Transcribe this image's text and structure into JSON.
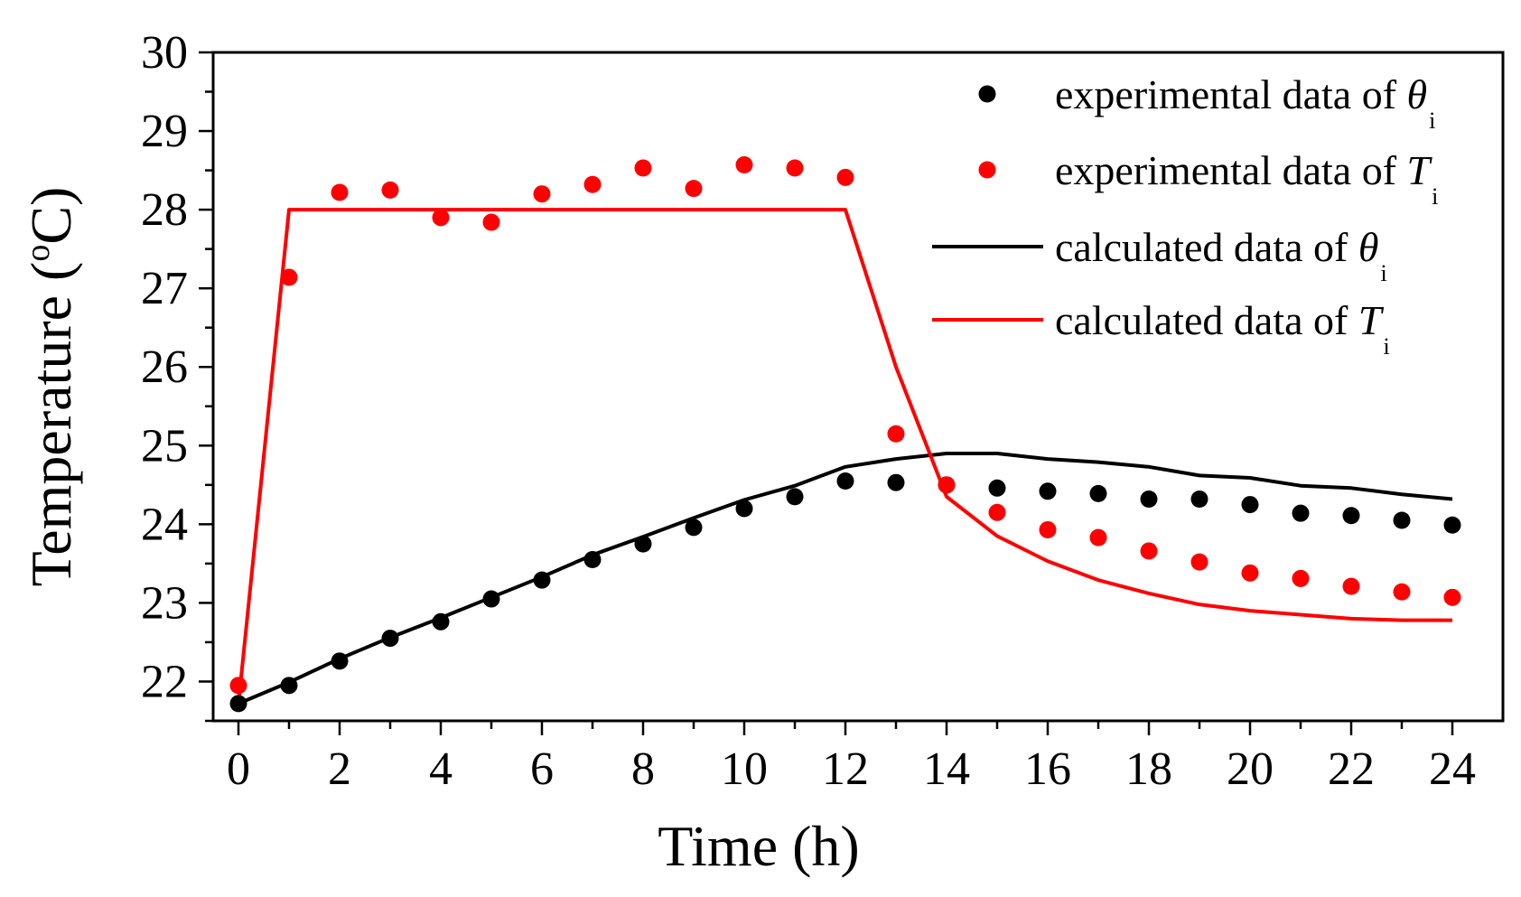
{
  "chart_data": {
    "type": "line",
    "title": "",
    "xlabel": "Time (h)",
    "ylabel": {
      "prefix": "Temperature (",
      "sup": "o",
      "suffix": "C)"
    },
    "xlim": [
      -0.5,
      25
    ],
    "ylim": [
      21.5,
      30
    ],
    "x_ticks": [
      0,
      2,
      4,
      6,
      8,
      10,
      12,
      14,
      16,
      18,
      20,
      22,
      24
    ],
    "y_ticks": [
      22,
      23,
      24,
      25,
      26,
      27,
      28,
      29,
      30
    ],
    "legend_position": "top-right",
    "series": [
      {
        "name": "experimental data of θi",
        "text": "experimental data of ",
        "symbol": "θ",
        "subscript": "i",
        "kind": "scatter",
        "color": "#000000",
        "x": [
          0,
          1,
          2,
          3,
          4,
          5,
          6,
          7,
          8,
          9,
          10,
          11,
          12,
          13,
          14,
          15,
          16,
          17,
          18,
          19,
          20,
          21,
          22,
          23,
          24
        ],
        "y": [
          21.72,
          21.95,
          22.26,
          22.55,
          22.76,
          23.05,
          23.29,
          23.55,
          23.75,
          23.96,
          24.2,
          24.35,
          24.55,
          24.53,
          24.5,
          24.46,
          24.42,
          24.39,
          24.32,
          24.32,
          24.25,
          24.14,
          24.11,
          24.05,
          23.99
        ]
      },
      {
        "name": "experimental data of Ti",
        "text": "experimental data of ",
        "symbol": "T",
        "subscript": "i",
        "kind": "scatter",
        "color": "#ff0000",
        "x": [
          0,
          1,
          2,
          3,
          4,
          5,
          6,
          7,
          8,
          9,
          10,
          11,
          12,
          13,
          14,
          15,
          16,
          17,
          18,
          19,
          20,
          21,
          22,
          23,
          24
        ],
        "y": [
          21.95,
          27.14,
          28.22,
          28.25,
          27.9,
          27.84,
          28.2,
          28.32,
          28.53,
          28.27,
          28.57,
          28.53,
          28.41,
          25.15,
          24.5,
          24.15,
          23.93,
          23.83,
          23.66,
          23.52,
          23.38,
          23.31,
          23.21,
          23.14,
          23.07
        ]
      },
      {
        "name": "calculated data of θi",
        "text": "calculated data of ",
        "symbol": "θ",
        "subscript": "i",
        "kind": "line",
        "color": "#000000",
        "x": [
          0,
          1,
          2,
          3,
          4,
          5,
          6,
          7,
          8,
          9,
          10,
          11,
          12,
          13,
          14,
          15,
          16,
          17,
          18,
          19,
          20,
          21,
          22,
          23,
          24
        ],
        "y": [
          21.72,
          21.99,
          22.29,
          22.56,
          22.81,
          23.07,
          23.33,
          23.61,
          23.84,
          24.08,
          24.31,
          24.49,
          24.73,
          24.83,
          24.9,
          24.9,
          24.83,
          24.79,
          24.73,
          24.62,
          24.59,
          24.49,
          24.46,
          24.38,
          24.32
        ]
      },
      {
        "name": "calculated data of Ti",
        "text": "calculated data of ",
        "symbol": "T",
        "subscript": "i",
        "kind": "line",
        "color": "#ff0000",
        "x": [
          0,
          1,
          12,
          13,
          14,
          15,
          16,
          17,
          18,
          19,
          20,
          21,
          22,
          23,
          24
        ],
        "y": [
          21.72,
          28.0,
          28.0,
          26.0,
          24.35,
          23.85,
          23.53,
          23.29,
          23.12,
          22.98,
          22.9,
          22.85,
          22.8,
          22.78,
          22.78
        ]
      }
    ]
  }
}
